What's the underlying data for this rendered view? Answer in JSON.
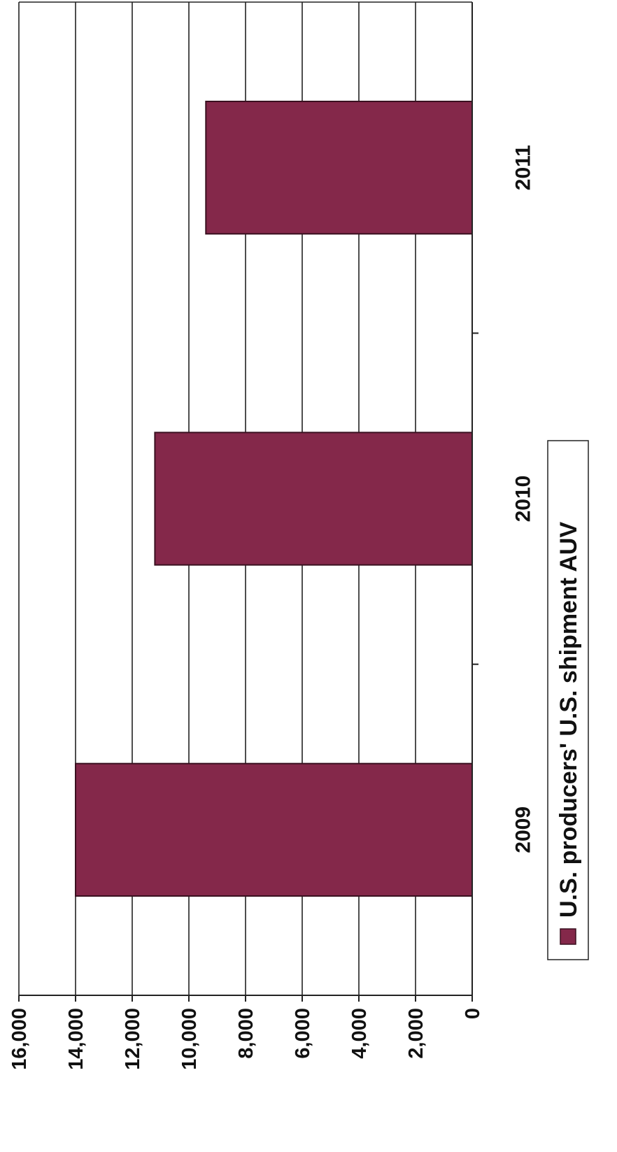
{
  "chart_data": {
    "type": "bar",
    "orientation": "rotated page (value axis along the left edge, categories running top to bottom)",
    "categories": [
      "2009",
      "2010",
      "2011"
    ],
    "series": [
      {
        "name": "U.S. producers' U.S. shipment AUV",
        "values": [
          14000,
          11200,
          9400
        ]
      }
    ],
    "ylim": [
      0,
      16000
    ],
    "ytick_values": [
      0,
      2000,
      4000,
      6000,
      8000,
      10000,
      12000,
      14000,
      16000
    ],
    "ytick_labels": [
      "0",
      "2,000",
      "4,000",
      "6,000",
      "8,000",
      "10,000",
      "12,000",
      "14,000",
      "16,000"
    ],
    "grid": true,
    "legend_position": "bottom",
    "colors": {
      "bar": "#84284a",
      "bar_edge": "#3a1020",
      "grid": "#222222"
    }
  }
}
